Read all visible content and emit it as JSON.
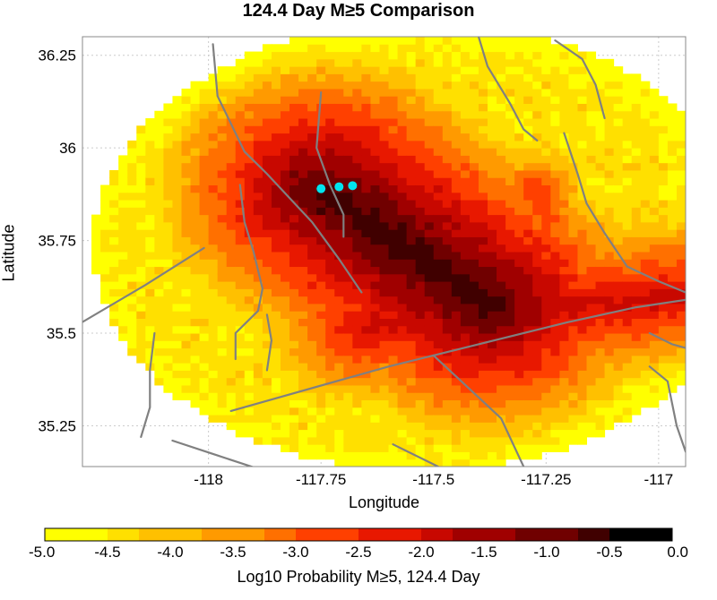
{
  "title": "124.4 Day M≥5 Comparison",
  "axes": {
    "xlabel": "Longitude",
    "ylabel": "Latitude",
    "xticks": [
      "-118",
      "-117.75",
      "-117.5",
      "-117.25",
      "-117"
    ],
    "yticks": [
      "36.25",
      "36",
      "35.75",
      "35.5",
      "35.25"
    ]
  },
  "colorbar": {
    "label": "Log10 Probability M≥5, 124.4 Day",
    "ticks": [
      "-5.0",
      "-4.5",
      "-4.0",
      "-3.5",
      "-3.0",
      "-2.5",
      "-2.0",
      "-1.5",
      "-1.0",
      "-0.5",
      "0.0"
    ],
    "range": [
      -5.0,
      0.0
    ],
    "colors": [
      "#ffff00",
      "#ffe000",
      "#ffc000",
      "#ff9a00",
      "#ff7000",
      "#ff4000",
      "#e81800",
      "#c80800",
      "#a00000",
      "#700000",
      "#400000",
      "#000000"
    ]
  },
  "chart_data": {
    "type": "heatmap",
    "title": "124.4 Day M≥5 Comparison",
    "xlabel": "Longitude",
    "ylabel": "Latitude",
    "xlim": [
      -118.28,
      -116.94
    ],
    "ylim": [
      35.14,
      36.3
    ],
    "value_label": "Log10 Probability M≥5, 124.4 Day",
    "value_range": [
      -5.0,
      0.0
    ],
    "grid": true,
    "events": [
      {
        "lon": -117.75,
        "lat": 35.89
      },
      {
        "lon": -117.71,
        "lat": 35.895
      },
      {
        "lon": -117.68,
        "lat": 35.898
      }
    ],
    "faults": [
      [
        [
          -117.99,
          36.28
        ],
        [
          -117.98,
          36.14
        ],
        [
          -117.92,
          35.99
        ],
        [
          -117.87,
          35.93
        ],
        [
          -117.77,
          35.8
        ],
        [
          -117.71,
          35.7
        ],
        [
          -117.66,
          35.61
        ]
      ],
      [
        [
          -117.75,
          36.15
        ],
        [
          -117.76,
          36.0
        ],
        [
          -117.73,
          35.9
        ],
        [
          -117.7,
          35.82
        ],
        [
          -117.7,
          35.76
        ]
      ],
      [
        [
          -117.93,
          35.9
        ],
        [
          -117.92,
          35.8
        ],
        [
          -117.9,
          35.72
        ],
        [
          -117.88,
          35.62
        ],
        [
          -117.89,
          35.56
        ],
        [
          -117.94,
          35.5
        ],
        [
          -117.94,
          35.43
        ]
      ],
      [
        [
          -118.28,
          35.53
        ],
        [
          -118.14,
          35.63
        ],
        [
          -118.01,
          35.73
        ]
      ],
      [
        [
          -117.95,
          35.29
        ],
        [
          -117.6,
          35.41
        ],
        [
          -117.4,
          35.47
        ],
        [
          -117.2,
          35.53
        ],
        [
          -117.05,
          35.57
        ],
        [
          -116.94,
          35.59
        ]
      ],
      [
        [
          -117.4,
          36.3
        ],
        [
          -117.38,
          36.22
        ],
        [
          -117.33,
          36.12
        ],
        [
          -117.3,
          36.05
        ],
        [
          -117.27,
          36.02
        ]
      ],
      [
        [
          -117.23,
          36.29
        ],
        [
          -117.17,
          36.24
        ],
        [
          -117.14,
          36.17
        ],
        [
          -117.12,
          36.08
        ]
      ],
      [
        [
          -117.21,
          36.04
        ],
        [
          -117.18,
          35.93
        ],
        [
          -117.16,
          35.85
        ],
        [
          -117.12,
          35.77
        ],
        [
          -117.07,
          35.68
        ],
        [
          -117.0,
          35.64
        ],
        [
          -116.94,
          35.61
        ]
      ],
      [
        [
          -118.12,
          35.5
        ],
        [
          -118.13,
          35.4
        ],
        [
          -118.13,
          35.3
        ],
        [
          -118.15,
          35.22
        ]
      ],
      [
        [
          -118.08,
          35.21
        ],
        [
          -117.98,
          35.17
        ],
        [
          -117.88,
          35.13
        ]
      ],
      [
        [
          -117.5,
          35.44
        ],
        [
          -117.35,
          35.27
        ],
        [
          -117.3,
          35.14
        ]
      ],
      [
        [
          -117.59,
          35.2
        ],
        [
          -117.49,
          35.14
        ]
      ],
      [
        [
          -117.02,
          35.5
        ],
        [
          -116.97,
          35.47
        ],
        [
          -116.94,
          35.46
        ]
      ],
      [
        [
          -117.02,
          35.41
        ],
        [
          -116.98,
          35.37
        ],
        [
          -116.96,
          35.25
        ],
        [
          -116.94,
          35.18
        ]
      ],
      [
        [
          -117.87,
          35.55
        ],
        [
          -117.86,
          35.48
        ],
        [
          -117.87,
          35.4
        ]
      ]
    ]
  }
}
